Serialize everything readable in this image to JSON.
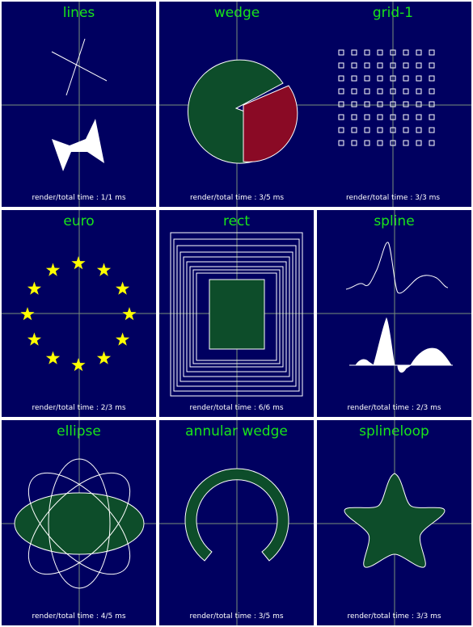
{
  "colors": {
    "background": "#000060",
    "title": "#19e519",
    "crosshair": "#7a8f7a",
    "fill_green": "#0d4d2a",
    "fill_red": "#8a0a25",
    "star": "#ffff00",
    "stroke": "#ffffff"
  },
  "panels": [
    {
      "id": "lines",
      "title": "lines",
      "timing": "render/total time : 1/1 ms"
    },
    {
      "id": "wedge",
      "title": "wedge",
      "timing": "render/total time : 3/5 ms"
    },
    {
      "id": "grid",
      "title": "grid-1",
      "timing": "render/total time : 3/3 ms"
    },
    {
      "id": "euro",
      "title": "euro",
      "timing": "render/total time : 2/3 ms"
    },
    {
      "id": "rect",
      "title": "rect",
      "timing": "render/total time : 6/6 ms"
    },
    {
      "id": "spline",
      "title": "spline",
      "timing": "render/total time : 2/3 ms"
    },
    {
      "id": "ellipse",
      "title": "ellipse",
      "timing": "render/total time : 4/5 ms"
    },
    {
      "id": "annular",
      "title": "annular wedge",
      "timing": "render/total time : 3/5 ms"
    },
    {
      "id": "splineloop",
      "title": "splineloop",
      "timing": "render/total time : 3/3 ms"
    }
  ]
}
